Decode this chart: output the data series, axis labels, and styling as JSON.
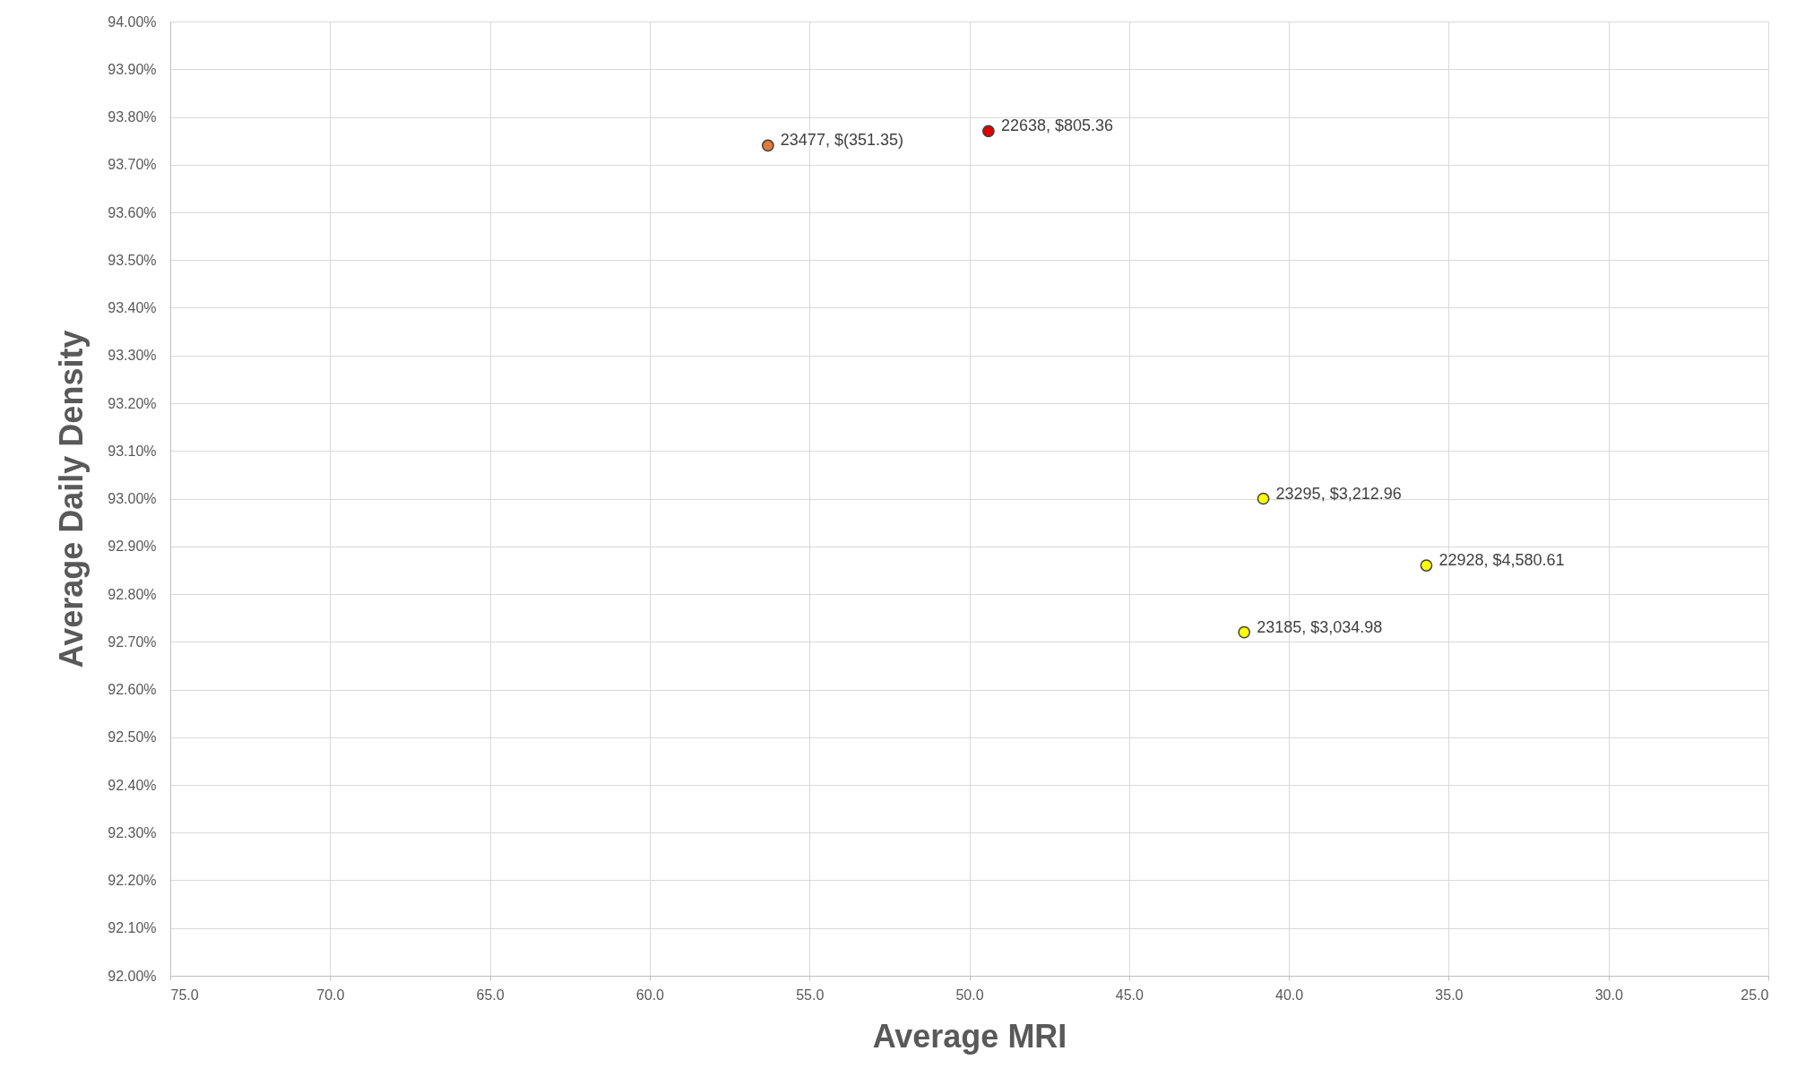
{
  "chart_data": {
    "type": "scatter",
    "xlabel": "Average MRI",
    "ylabel": "Average Daily Density",
    "x": [
      56.3,
      49.4,
      40.8,
      35.7,
      41.4
    ],
    "values": [
      93.74,
      93.77,
      93.0,
      92.86,
      92.72
    ],
    "colors": [
      "#e07b39",
      "#e00000",
      "#ffff00",
      "#ffff00",
      "#ffff00"
    ],
    "marker": "circle",
    "grid": true,
    "xlim": [
      75,
      25
    ],
    "xticks": [
      {
        "value": 75,
        "label": "75.0"
      },
      {
        "value": 70,
        "label": "70.0"
      },
      {
        "value": 65,
        "label": "65.0"
      },
      {
        "value": 60,
        "label": "60.0"
      },
      {
        "value": 55,
        "label": "55.0"
      },
      {
        "value": 50,
        "label": "50.0"
      },
      {
        "value": 45,
        "label": "45.0"
      },
      {
        "value": 40,
        "label": "40.0"
      },
      {
        "value": 35,
        "label": "35.0"
      },
      {
        "value": 30,
        "label": "30.0"
      },
      {
        "value": 25,
        "label": "25.0"
      }
    ],
    "ylim": [
      92,
      94
    ],
    "yticks": [
      {
        "value": 92,
        "label": "92.00%"
      },
      {
        "value": 92.1,
        "label": "92.10%"
      },
      {
        "value": 92.2,
        "label": "92.20%"
      },
      {
        "value": 92.3,
        "label": "92.30%"
      },
      {
        "value": 92.4,
        "label": "92.40%"
      },
      {
        "value": 92.5,
        "label": "92.50%"
      },
      {
        "value": 92.6,
        "label": "92.60%"
      },
      {
        "value": 92.7,
        "label": "92.70%"
      },
      {
        "value": 92.8,
        "label": "92.80%"
      },
      {
        "value": 92.9,
        "label": "92.90%"
      },
      {
        "value": 93,
        "label": "93.00%"
      },
      {
        "value": 93.1,
        "label": "93.10%"
      },
      {
        "value": 93.2,
        "label": "93.20%"
      },
      {
        "value": 93.3,
        "label": "93.30%"
      },
      {
        "value": 93.4,
        "label": "93.40%"
      },
      {
        "value": 93.5,
        "label": "93.50%"
      },
      {
        "value": 93.6,
        "label": "93.60%"
      },
      {
        "value": 93.7,
        "label": "93.70%"
      },
      {
        "value": 93.8,
        "label": "93.80%"
      },
      {
        "value": 93.9,
        "label": "93.90%"
      },
      {
        "value": 94,
        "label": "94.00%"
      }
    ],
    "annotations": [
      {
        "text": "23477, $(351.35)",
        "x": 56.3,
        "y": 93.74
      },
      {
        "text": "22638, $805.36",
        "x": 49.4,
        "y": 93.77
      },
      {
        "text": "23295, $3,212.96",
        "x": 40.8,
        "y": 93.0
      },
      {
        "text": "22928, $4,580.61",
        "x": 35.7,
        "y": 92.86
      },
      {
        "text": "23185, $3,034.98",
        "x": 41.4,
        "y": 92.72
      }
    ]
  }
}
